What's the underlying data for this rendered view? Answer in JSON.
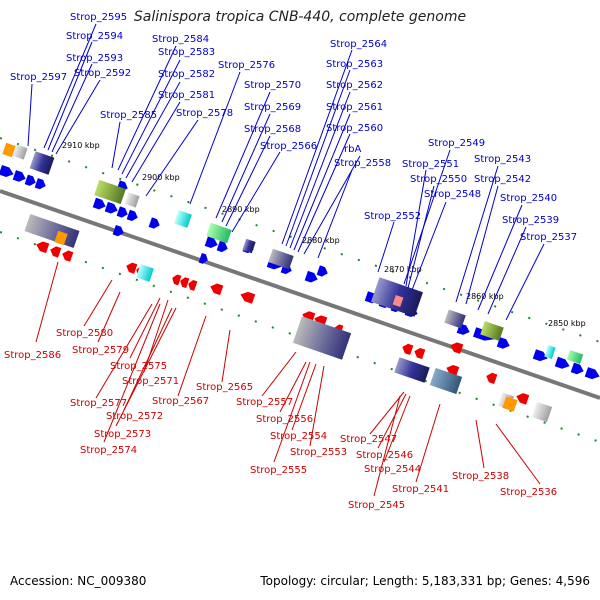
{
  "title": "Salinispora tropica CNB-440, complete genome",
  "footer": {
    "accession": "Accession: NC_009380",
    "topology": "Topology: circular; Length: 5,183,331 bp; Genes: 4,596"
  },
  "colors": {
    "forward_label": "#0000cc",
    "reverse_label": "#cc0000",
    "forward_gene": "#0000ee",
    "reverse_gene": "#ee0000",
    "backbone": "#777777",
    "tick": "#228822"
  },
  "kbp_ticks": [
    "2910 kbp",
    "2900 kbp",
    "2890 kbp",
    "2880 kbp",
    "2870 kbp",
    "2860 kbp",
    "2850 kbp"
  ],
  "forward_labels": [
    "Strop_2595",
    "Strop_2594",
    "Strop_2593",
    "Strop_2592",
    "Strop_2597",
    "Strop_2584",
    "Strop_2583",
    "Strop_2582",
    "Strop_2581",
    "Strop_2585",
    "Strop_2578",
    "Strop_2576",
    "Strop_2570",
    "Strop_2569",
    "Strop_2568",
    "Strop_2566",
    "Strop_2564",
    "Strop_2563",
    "Strop_2562",
    "Strop_2561",
    "Strop_2560",
    "rbA",
    "Strop_2558",
    "Strop_2552",
    "Strop_2549",
    "Strop_2551",
    "Strop_2550",
    "Strop_2548",
    "Strop_2543",
    "Strop_2542",
    "Strop_2540",
    "Strop_2539",
    "Strop_2537"
  ],
  "reverse_labels": [
    "Strop_2586",
    "Strop_2580",
    "Strop_2579",
    "Strop_2575",
    "Strop_2571",
    "Strop_2577",
    "Strop_2572",
    "Strop_2573",
    "Strop_2574",
    "Strop_2567",
    "Strop_2565",
    "Strop_2557",
    "Strop_2556",
    "Strop_2554",
    "Strop_2553",
    "Strop_2555",
    "Strop_2547",
    "Strop_2546",
    "Strop_2544",
    "Strop_2541",
    "Strop_2545",
    "Strop_2538",
    "Strop_2536"
  ]
}
